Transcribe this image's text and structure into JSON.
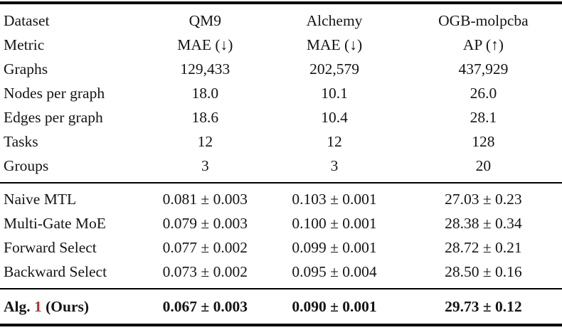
{
  "accent_red": "#b23427",
  "table": {
    "stats_rows": [
      {
        "label": "Dataset",
        "values": [
          "QM9",
          "Alchemy",
          "OGB-molpcba"
        ]
      },
      {
        "label": "Metric",
        "values": [
          "MAE (↓)",
          "MAE (↓)",
          "AP (↑)"
        ]
      },
      {
        "label": "Graphs",
        "values": [
          "129,433",
          "202,579",
          "437,929"
        ]
      },
      {
        "label": "Nodes per graph",
        "values": [
          "18.0",
          "10.1",
          "26.0"
        ]
      },
      {
        "label": "Edges per graph",
        "values": [
          "18.6",
          "10.4",
          "28.1"
        ]
      },
      {
        "label": "Tasks",
        "values": [
          "12",
          "12",
          "128"
        ]
      },
      {
        "label": "Groups",
        "values": [
          "3",
          "3",
          "20"
        ]
      }
    ],
    "baseline_rows": [
      {
        "label": "Naive MTL",
        "values": [
          "0.081 ± 0.003",
          "0.103 ± 0.001",
          "27.03 ± 0.23"
        ]
      },
      {
        "label": "Multi-Gate MoE",
        "values": [
          "0.079 ± 0.003",
          "0.100 ± 0.001",
          "28.38 ± 0.34"
        ]
      },
      {
        "label": "Forward Select",
        "values": [
          "0.077 ± 0.002",
          "0.099 ± 0.001",
          "28.72 ± 0.21"
        ]
      },
      {
        "label": "Backward Select",
        "values": [
          "0.073 ± 0.002",
          "0.095 ± 0.004",
          "28.50 ± 0.16"
        ]
      }
    ],
    "ours_row": {
      "label_prefix": "Alg.",
      "label_number": "1",
      "label_suffix": "(Ours)",
      "values": [
        "0.067 ± 0.003",
        "0.090 ± 0.001",
        "29.73 ± 0.12"
      ]
    }
  }
}
